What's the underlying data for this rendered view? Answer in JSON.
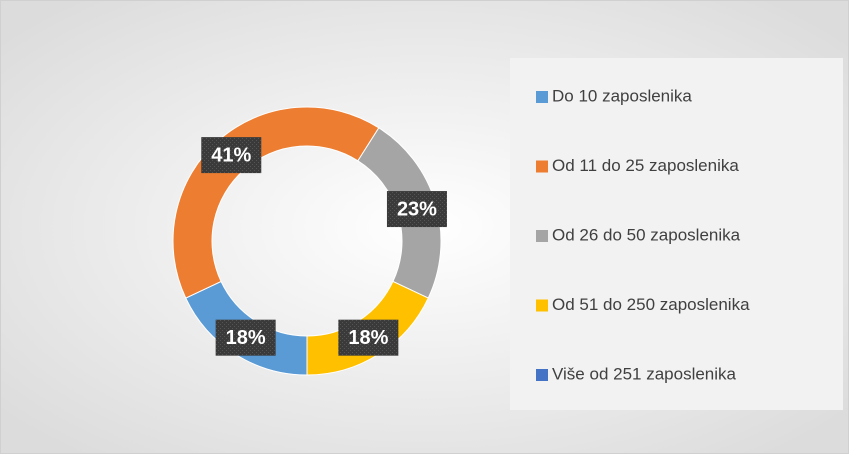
{
  "chart_data": {
    "type": "donut",
    "categories": [
      "Do 10 zaposlenika",
      "Od 11 do 25 zaposlenika",
      "Od 26 do 50 zaposlenika",
      "Od 51 do 250 zaposlenika",
      "Više od 251 zaposlenika"
    ],
    "values": [
      18,
      41,
      23,
      18,
      0
    ],
    "value_labels": [
      "18%",
      "41%",
      "23%",
      "18%",
      null
    ],
    "colors": [
      "#5b9bd5",
      "#ed7d31",
      "#a5a5a5",
      "#ffc000",
      "#4472c4"
    ],
    "legend": "right"
  }
}
